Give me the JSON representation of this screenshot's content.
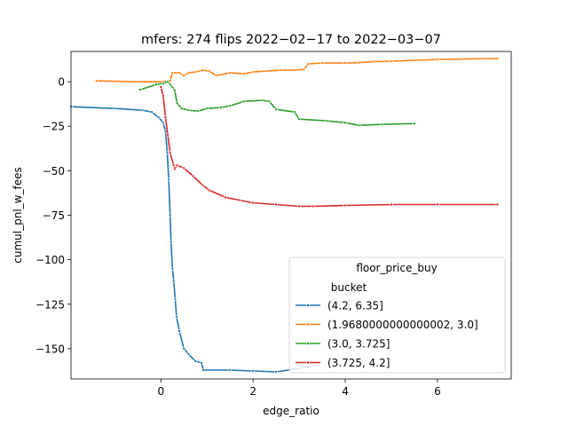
{
  "chart_data": {
    "type": "line",
    "title": "mfers: 274 flips 2022−02−17 to 2022−03−07",
    "xlabel": "edge_ratio",
    "ylabel": "cumul_pnl_w_fees",
    "xlim": [
      -1.95,
      7.6
    ],
    "ylim": [
      -167,
      17
    ],
    "xticks": [
      0,
      2,
      4,
      6
    ],
    "xtick_labels": [
      "0",
      "2",
      "4",
      "6"
    ],
    "yticks": [
      0,
      -25,
      -50,
      -75,
      -100,
      -125,
      -150
    ],
    "ytick_labels": [
      "0",
      "−25",
      "−50",
      "−75",
      "−100",
      "−125",
      "−150"
    ],
    "grid": false,
    "legend": {
      "title": "floor_price_buy",
      "subtitle": "bucket",
      "placement": "lower right"
    },
    "series": [
      {
        "name": "(4.2, 6.35]",
        "color": "#1f77b4",
        "points": [
          [
            -1.95,
            -14
          ],
          [
            -1.0,
            -15
          ],
          [
            -0.4,
            -16
          ],
          [
            -0.2,
            -17
          ],
          [
            -0.05,
            -20
          ],
          [
            0.05,
            -23
          ],
          [
            0.1,
            -28
          ],
          [
            0.14,
            -40
          ],
          [
            0.17,
            -55
          ],
          [
            0.2,
            -75
          ],
          [
            0.22,
            -90
          ],
          [
            0.25,
            -105
          ],
          [
            0.28,
            -112
          ],
          [
            0.31,
            -122
          ],
          [
            0.34,
            -132
          ],
          [
            0.4,
            -140
          ],
          [
            0.5,
            -150
          ],
          [
            0.6,
            -153
          ],
          [
            0.75,
            -157
          ],
          [
            0.88,
            -158
          ],
          [
            0.92,
            -162
          ],
          [
            1.5,
            -162
          ],
          [
            2.0,
            -162.5
          ],
          [
            2.5,
            -163
          ],
          [
            3.0,
            -161
          ],
          [
            3.2,
            -160
          ]
        ]
      },
      {
        "name": "(1.9680000000000002, 3.0]",
        "color": "#ff7f0e",
        "points": [
          [
            -1.4,
            0.5
          ],
          [
            -0.5,
            0
          ],
          [
            0.05,
            0
          ],
          [
            0.2,
            0.5
          ],
          [
            0.25,
            5
          ],
          [
            0.4,
            5
          ],
          [
            0.5,
            3.5
          ],
          [
            0.6,
            5
          ],
          [
            0.75,
            5.5
          ],
          [
            0.9,
            6.5
          ],
          [
            1.05,
            6
          ],
          [
            1.2,
            3.5
          ],
          [
            1.5,
            5
          ],
          [
            1.8,
            4.5
          ],
          [
            2.0,
            5.5
          ],
          [
            2.3,
            6
          ],
          [
            2.6,
            6.5
          ],
          [
            2.9,
            6.5
          ],
          [
            3.1,
            7
          ],
          [
            3.2,
            10
          ],
          [
            3.5,
            10.5
          ],
          [
            4.0,
            10.5
          ],
          [
            4.3,
            10.7
          ],
          [
            4.6,
            11.3
          ],
          [
            5.0,
            11.5
          ],
          [
            5.5,
            12
          ],
          [
            6.0,
            12.5
          ],
          [
            6.5,
            12.7
          ],
          [
            7.0,
            13
          ],
          [
            7.3,
            13
          ]
        ]
      },
      {
        "name": "(3.0, 3.725]",
        "color": "#2ca02c",
        "points": [
          [
            -0.45,
            -4.5
          ],
          [
            -0.1,
            -1.5
          ],
          [
            0.05,
            -1
          ],
          [
            0.15,
            0
          ],
          [
            0.25,
            -3
          ],
          [
            0.3,
            -5
          ],
          [
            0.35,
            -12
          ],
          [
            0.45,
            -15
          ],
          [
            0.6,
            -16
          ],
          [
            0.8,
            -16.5
          ],
          [
            1.0,
            -15
          ],
          [
            1.3,
            -14.5
          ],
          [
            1.5,
            -13.5
          ],
          [
            1.8,
            -11
          ],
          [
            2.2,
            -10.5
          ],
          [
            2.35,
            -11
          ],
          [
            2.5,
            -15.5
          ],
          [
            2.9,
            -17
          ],
          [
            3.0,
            -21
          ],
          [
            3.6,
            -22
          ],
          [
            4.0,
            -23
          ],
          [
            4.3,
            -24.5
          ],
          [
            4.8,
            -24
          ],
          [
            5.5,
            -23.5
          ]
        ]
      },
      {
        "name": "(3.725, 4.2]",
        "color": "#d62728",
        "points": [
          [
            0.0,
            -3
          ],
          [
            0.05,
            -8
          ],
          [
            0.1,
            -20
          ],
          [
            0.15,
            -30
          ],
          [
            0.2,
            -40
          ],
          [
            0.28,
            -47
          ],
          [
            0.3,
            -49
          ],
          [
            0.35,
            -47
          ],
          [
            0.5,
            -48.5
          ],
          [
            0.7,
            -53
          ],
          [
            0.9,
            -58
          ],
          [
            1.05,
            -61
          ],
          [
            1.4,
            -65
          ],
          [
            1.7,
            -66.5
          ],
          [
            2.0,
            -68
          ],
          [
            2.5,
            -69
          ],
          [
            3.0,
            -70
          ],
          [
            3.3,
            -70
          ],
          [
            4.0,
            -69.5
          ],
          [
            5.0,
            -69
          ],
          [
            6.0,
            -69
          ],
          [
            7.3,
            -69
          ]
        ]
      }
    ]
  }
}
